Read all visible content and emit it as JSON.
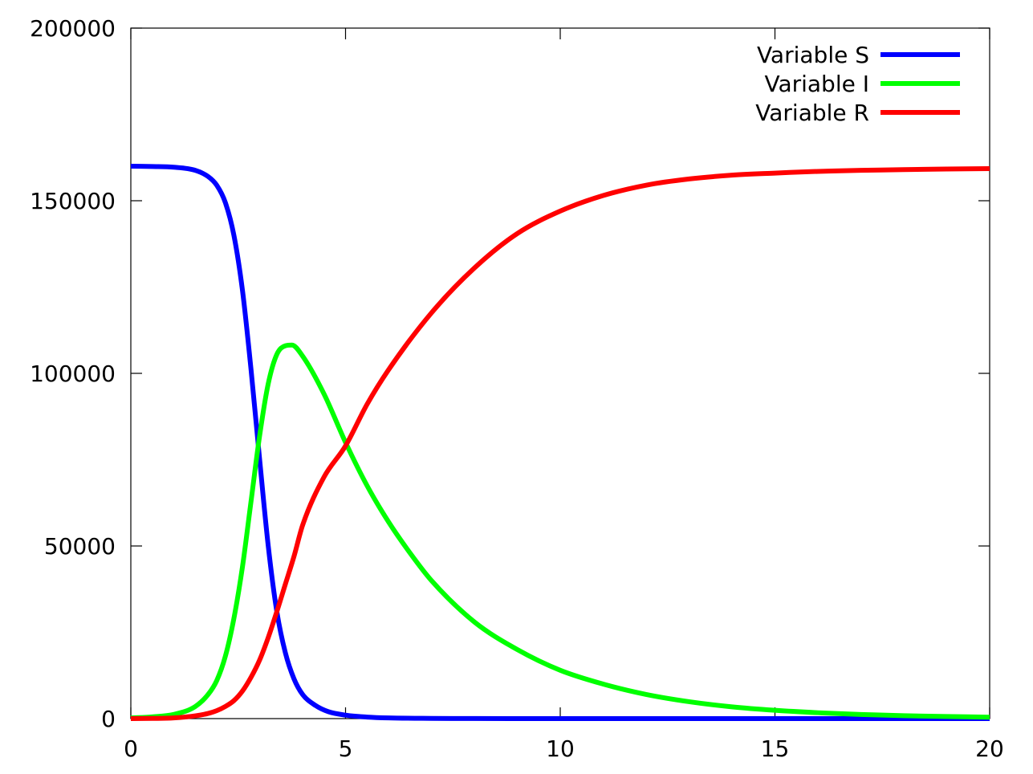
{
  "chart_data": {
    "type": "line",
    "title": "",
    "xlabel": "",
    "ylabel": "",
    "xlim": [
      0,
      20
    ],
    "ylim": [
      0,
      200000
    ],
    "x_ticks": [
      "0",
      "5",
      "10",
      "15",
      "20"
    ],
    "y_ticks": [
      "0",
      "50000",
      "100000",
      "150000",
      "200000"
    ],
    "grid": false,
    "legend_position": "top-right",
    "series": [
      {
        "name": "Variable S",
        "color": "#0000ff",
        "x": [
          0,
          0.5,
          1,
          1.5,
          1.8,
          2,
          2.2,
          2.4,
          2.6,
          2.8,
          3,
          3.2,
          3.4,
          3.6,
          3.8,
          4,
          4.3,
          4.6,
          5,
          5.5,
          6,
          7,
          8,
          10,
          15,
          20
        ],
        "y": [
          160000,
          159900,
          159700,
          158800,
          157000,
          154500,
          149500,
          140000,
          124000,
          101000,
          75000,
          50000,
          31000,
          19000,
          11500,
          7000,
          3800,
          2000,
          1000,
          450,
          200,
          60,
          20,
          5,
          0,
          0
        ]
      },
      {
        "name": "Variable I",
        "color": "#00ff00",
        "x": [
          0,
          0.5,
          1,
          1.5,
          1.8,
          2,
          2.2,
          2.4,
          2.6,
          2.8,
          3,
          3.2,
          3.4,
          3.6,
          3.75,
          4,
          4.5,
          5,
          5.5,
          6,
          6.5,
          7,
          8,
          9,
          10,
          11,
          12,
          13,
          14,
          15,
          16,
          17,
          18,
          19,
          20
        ],
        "y": [
          200,
          500,
          1200,
          3500,
          7000,
          11000,
          18000,
          29000,
          44000,
          63000,
          82000,
          97000,
          105500,
          108000,
          108200,
          105000,
          94000,
          80000,
          67500,
          57000,
          48000,
          40000,
          28000,
          20000,
          14000,
          10000,
          7000,
          4900,
          3400,
          2400,
          1700,
          1200,
          850,
          600,
          420
        ]
      },
      {
        "name": "Variable R",
        "color": "#ff0000",
        "x": [
          0,
          0.5,
          1,
          1.5,
          1.8,
          2,
          2.2,
          2.4,
          2.6,
          2.8,
          3,
          3.2,
          3.4,
          3.6,
          3.8,
          4,
          4.5,
          5,
          5.5,
          6,
          7,
          8,
          9,
          10,
          11,
          12,
          13,
          14,
          15,
          16,
          17,
          18,
          19,
          20
        ],
        "y": [
          0,
          50,
          200,
          800,
          1500,
          2300,
          3500,
          5200,
          8000,
          12000,
          17000,
          23500,
          31000,
          39000,
          47000,
          56000,
          70000,
          79000,
          91000,
          101000,
          117500,
          130500,
          140500,
          147000,
          151500,
          154500,
          156300,
          157400,
          158000,
          158500,
          158800,
          159000,
          159200,
          159300
        ]
      }
    ]
  }
}
